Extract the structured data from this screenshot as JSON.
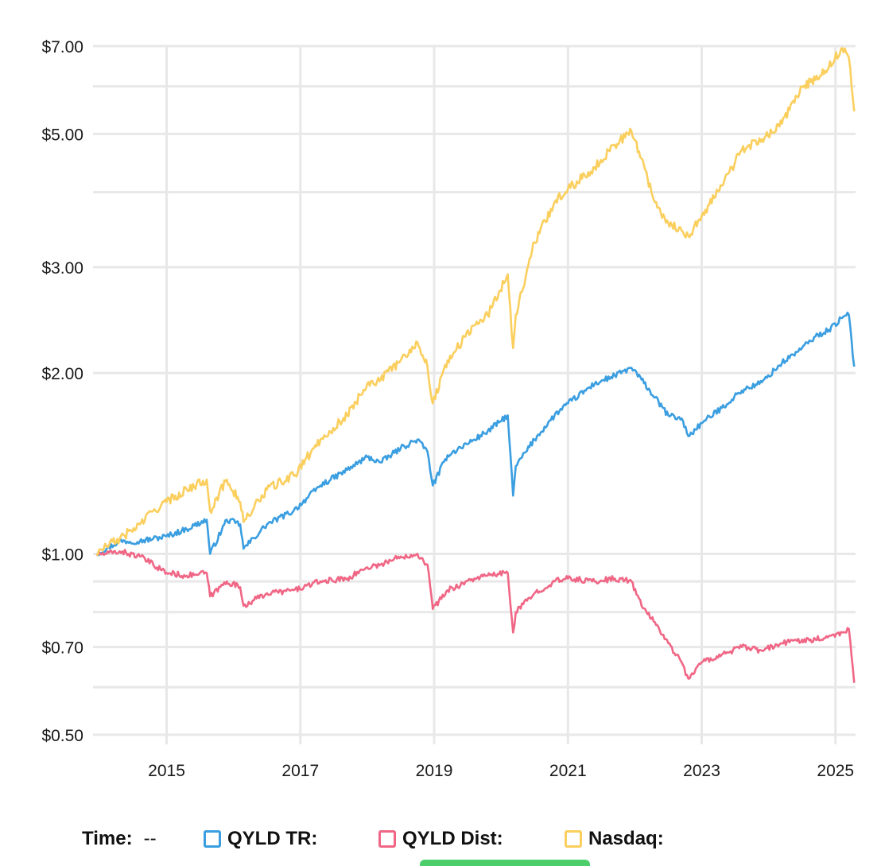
{
  "chart_data": {
    "type": "line",
    "y_scale": "log",
    "ylim": [
      0.5,
      7.0
    ],
    "xlim": [
      2013.9,
      2025.3
    ],
    "y_ticks": [
      {
        "value": 7.0,
        "label": "$7.00"
      },
      {
        "value": 5.0,
        "label": "$5.00"
      },
      {
        "value": 3.0,
        "label": "$3.00"
      },
      {
        "value": 2.0,
        "label": "$2.00"
      },
      {
        "value": 1.0,
        "label": "$1.00"
      },
      {
        "value": 0.7,
        "label": "$0.70"
      },
      {
        "value": 0.5,
        "label": "$0.50"
      }
    ],
    "y_minor_grid": [
      6.0,
      4.0,
      0.9,
      0.8,
      0.6
    ],
    "x_ticks": [
      {
        "value": 2015,
        "label": "2015"
      },
      {
        "value": 2017,
        "label": "2017"
      },
      {
        "value": 2019,
        "label": "2019"
      },
      {
        "value": 2021,
        "label": "2021"
      },
      {
        "value": 2023,
        "label": "2023"
      },
      {
        "value": 2025,
        "label": "2025"
      }
    ],
    "grid": true,
    "legend_position": "bottom",
    "series": [
      {
        "name": "QYLD TR",
        "color": "#3a9ee0",
        "x": [
          2013.95,
          2014.1,
          2014.3,
          2014.6,
          2014.8,
          2015.0,
          2015.3,
          2015.6,
          2015.65,
          2015.9,
          2016.1,
          2016.15,
          2016.5,
          2016.9,
          2017.3,
          2017.7,
          2018.0,
          2018.2,
          2018.5,
          2018.75,
          2018.9,
          2018.98,
          2019.2,
          2019.6,
          2019.8,
          2020.1,
          2020.18,
          2020.22,
          2020.5,
          2020.8,
          2021.0,
          2021.4,
          2021.7,
          2021.95,
          2022.1,
          2022.3,
          2022.5,
          2022.7,
          2022.8,
          2023.0,
          2023.3,
          2023.6,
          2023.9,
          2024.2,
          2024.5,
          2024.7,
          2024.9,
          2025.1,
          2025.2,
          2025.28
        ],
        "y": [
          1.0,
          1.02,
          1.05,
          1.05,
          1.06,
          1.07,
          1.1,
          1.14,
          1.0,
          1.14,
          1.12,
          1.02,
          1.12,
          1.18,
          1.3,
          1.38,
          1.45,
          1.42,
          1.5,
          1.55,
          1.48,
          1.3,
          1.46,
          1.55,
          1.6,
          1.7,
          1.25,
          1.4,
          1.55,
          1.7,
          1.78,
          1.92,
          1.98,
          2.04,
          1.95,
          1.82,
          1.7,
          1.68,
          1.57,
          1.65,
          1.75,
          1.87,
          1.93,
          2.08,
          2.2,
          2.3,
          2.36,
          2.47,
          2.5,
          2.05
        ]
      },
      {
        "name": "QYLD Dist",
        "color": "#f06786",
        "x": [
          2013.95,
          2014.1,
          2014.3,
          2014.6,
          2014.8,
          2015.0,
          2015.3,
          2015.6,
          2015.65,
          2015.9,
          2016.1,
          2016.15,
          2016.5,
          2016.9,
          2017.3,
          2017.7,
          2018.0,
          2018.2,
          2018.5,
          2018.75,
          2018.9,
          2018.98,
          2019.2,
          2019.6,
          2019.8,
          2020.1,
          2020.18,
          2020.22,
          2020.5,
          2020.8,
          2021.0,
          2021.4,
          2021.7,
          2021.95,
          2022.1,
          2022.3,
          2022.5,
          2022.7,
          2022.8,
          2023.0,
          2023.3,
          2023.6,
          2023.9,
          2024.2,
          2024.5,
          2024.7,
          2024.9,
          2025.1,
          2025.2,
          2025.28
        ],
        "y": [
          1.0,
          1.0,
          1.01,
          0.99,
          0.96,
          0.93,
          0.92,
          0.93,
          0.85,
          0.9,
          0.88,
          0.82,
          0.86,
          0.87,
          0.9,
          0.91,
          0.95,
          0.96,
          0.99,
          1.0,
          0.96,
          0.81,
          0.87,
          0.91,
          0.92,
          0.93,
          0.74,
          0.8,
          0.86,
          0.9,
          0.91,
          0.9,
          0.91,
          0.9,
          0.82,
          0.77,
          0.71,
          0.66,
          0.62,
          0.66,
          0.68,
          0.7,
          0.69,
          0.71,
          0.72,
          0.72,
          0.73,
          0.74,
          0.75,
          0.61
        ]
      },
      {
        "name": "Nasdaq",
        "color": "#fbcf5e",
        "x": [
          2013.95,
          2014.1,
          2014.3,
          2014.6,
          2014.8,
          2015.0,
          2015.3,
          2015.6,
          2015.65,
          2015.9,
          2016.1,
          2016.15,
          2016.5,
          2016.9,
          2017.3,
          2017.7,
          2018.0,
          2018.2,
          2018.5,
          2018.75,
          2018.9,
          2018.98,
          2019.2,
          2019.6,
          2019.8,
          2020.1,
          2020.18,
          2020.22,
          2020.5,
          2020.8,
          2021.0,
          2021.4,
          2021.7,
          2021.95,
          2022.1,
          2022.3,
          2022.5,
          2022.7,
          2022.8,
          2023.0,
          2023.3,
          2023.6,
          2023.9,
          2024.2,
          2024.5,
          2024.7,
          2024.9,
          2025.1,
          2025.2,
          2025.28
        ],
        "y": [
          1.0,
          1.03,
          1.06,
          1.12,
          1.18,
          1.22,
          1.28,
          1.33,
          1.18,
          1.33,
          1.22,
          1.13,
          1.28,
          1.35,
          1.55,
          1.7,
          1.92,
          1.95,
          2.1,
          2.25,
          2.05,
          1.78,
          2.1,
          2.4,
          2.5,
          2.92,
          2.2,
          2.5,
          3.3,
          3.85,
          4.05,
          4.4,
          4.8,
          5.05,
          4.55,
          3.85,
          3.55,
          3.45,
          3.38,
          3.65,
          4.1,
          4.7,
          4.9,
          5.2,
          6.0,
          6.15,
          6.45,
          6.95,
          6.7,
          5.45
        ]
      }
    ]
  },
  "legend": {
    "time_label": "Time:",
    "time_value": "--",
    "items": [
      {
        "label": "QYLD TR:",
        "color": "#3a9ee0"
      },
      {
        "label": "QYLD Dist:",
        "color": "#f06786"
      },
      {
        "label": "Nasdaq:",
        "color": "#fbcf5e"
      }
    ]
  }
}
